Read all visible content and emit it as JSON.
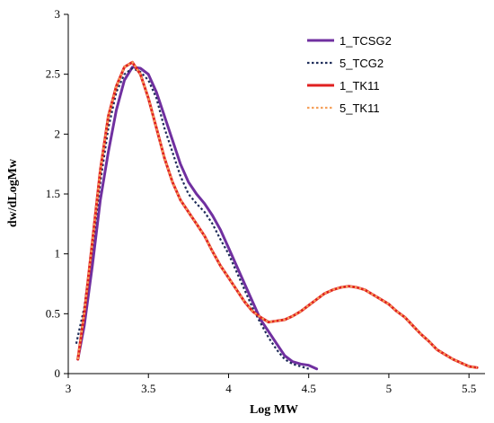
{
  "chart_data": {
    "type": "line",
    "title": "",
    "xlabel": "Log MW",
    "ylabel": "dw/dLogMw",
    "xlim": [
      3,
      5.6
    ],
    "ylim": [
      0,
      3
    ],
    "xticks": [
      3,
      3.5,
      4,
      4.5,
      5,
      5.5
    ],
    "yticks": [
      0,
      0.5,
      1,
      1.5,
      2,
      2.5,
      3
    ],
    "grid": false,
    "legend_position": "top-right",
    "series": [
      {
        "name": "1_TCSG2",
        "color": "#7030A0",
        "dash": "solid",
        "x": [
          3.06,
          3.1,
          3.15,
          3.2,
          3.25,
          3.3,
          3.35,
          3.4,
          3.45,
          3.5,
          3.55,
          3.6,
          3.65,
          3.7,
          3.75,
          3.8,
          3.85,
          3.9,
          3.95,
          4.0,
          4.05,
          4.1,
          4.15,
          4.2,
          4.25,
          4.3,
          4.35,
          4.4,
          4.45,
          4.5,
          4.55
        ],
        "y": [
          0.12,
          0.4,
          0.9,
          1.45,
          1.85,
          2.2,
          2.45,
          2.56,
          2.55,
          2.5,
          2.35,
          2.15,
          1.95,
          1.75,
          1.6,
          1.5,
          1.42,
          1.32,
          1.2,
          1.05,
          0.9,
          0.75,
          0.6,
          0.45,
          0.35,
          0.25,
          0.15,
          0.1,
          0.08,
          0.07,
          0.04
        ]
      },
      {
        "name": "5_TCG2",
        "color": "#1F2D5A",
        "dash": "dotted",
        "x": [
          3.05,
          3.1,
          3.15,
          3.2,
          3.25,
          3.3,
          3.35,
          3.4,
          3.45,
          3.5,
          3.55,
          3.6,
          3.65,
          3.7,
          3.75,
          3.8,
          3.85,
          3.9,
          3.95,
          4.0,
          4.05,
          4.1,
          4.15,
          4.2,
          4.25,
          4.3,
          4.35,
          4.4,
          4.45,
          4.5
        ],
        "y": [
          0.25,
          0.55,
          1.05,
          1.6,
          2.05,
          2.35,
          2.5,
          2.55,
          2.52,
          2.45,
          2.3,
          2.05,
          1.85,
          1.65,
          1.5,
          1.42,
          1.35,
          1.25,
          1.12,
          1.0,
          0.85,
          0.7,
          0.55,
          0.42,
          0.3,
          0.2,
          0.12,
          0.08,
          0.06,
          0.04
        ]
      },
      {
        "name": "1_TK11",
        "color": "#E02020",
        "dash": "solid",
        "x": [
          3.06,
          3.1,
          3.15,
          3.2,
          3.25,
          3.3,
          3.35,
          3.4,
          3.45,
          3.5,
          3.55,
          3.6,
          3.65,
          3.7,
          3.75,
          3.8,
          3.85,
          3.9,
          3.95,
          4.0,
          4.05,
          4.1,
          4.15,
          4.2,
          4.25,
          4.3,
          4.35,
          4.4,
          4.45,
          4.5,
          4.55,
          4.6,
          4.65,
          4.7,
          4.75,
          4.8,
          4.85,
          4.9,
          4.95,
          5.0,
          5.05,
          5.1,
          5.15,
          5.2,
          5.25,
          5.3,
          5.35,
          5.4,
          5.45,
          5.5,
          5.55
        ],
        "y": [
          0.12,
          0.5,
          1.1,
          1.7,
          2.15,
          2.4,
          2.56,
          2.6,
          2.5,
          2.3,
          2.05,
          1.8,
          1.6,
          1.45,
          1.35,
          1.25,
          1.15,
          1.02,
          0.9,
          0.8,
          0.7,
          0.6,
          0.52,
          0.47,
          0.43,
          0.44,
          0.45,
          0.48,
          0.52,
          0.57,
          0.62,
          0.67,
          0.7,
          0.72,
          0.73,
          0.72,
          0.7,
          0.66,
          0.62,
          0.58,
          0.52,
          0.47,
          0.4,
          0.33,
          0.27,
          0.2,
          0.16,
          0.12,
          0.09,
          0.06,
          0.05
        ]
      },
      {
        "name": "5_TK11",
        "color": "#F5A05A",
        "dash": "dotted",
        "x": [
          3.06,
          3.1,
          3.15,
          3.2,
          3.25,
          3.3,
          3.35,
          3.4,
          3.45,
          3.5,
          3.55,
          3.6,
          3.65,
          3.7,
          3.75,
          3.8,
          3.85,
          3.9,
          3.95,
          4.0,
          4.05,
          4.1,
          4.15,
          4.2,
          4.25,
          4.3,
          4.35,
          4.4,
          4.45,
          4.5,
          4.55,
          4.6,
          4.65,
          4.7,
          4.75,
          4.8,
          4.85,
          4.9,
          4.95,
          5.0,
          5.05,
          5.1,
          5.15,
          5.2,
          5.25,
          5.3,
          5.35,
          5.4,
          5.45,
          5.5,
          5.55
        ],
        "y": [
          0.12,
          0.5,
          1.1,
          1.7,
          2.15,
          2.4,
          2.56,
          2.6,
          2.5,
          2.3,
          2.05,
          1.8,
          1.6,
          1.45,
          1.35,
          1.25,
          1.15,
          1.02,
          0.9,
          0.8,
          0.7,
          0.6,
          0.52,
          0.47,
          0.43,
          0.44,
          0.45,
          0.48,
          0.52,
          0.57,
          0.62,
          0.67,
          0.7,
          0.72,
          0.73,
          0.72,
          0.7,
          0.66,
          0.62,
          0.58,
          0.52,
          0.47,
          0.4,
          0.33,
          0.27,
          0.2,
          0.16,
          0.12,
          0.09,
          0.06,
          0.05
        ]
      }
    ]
  }
}
